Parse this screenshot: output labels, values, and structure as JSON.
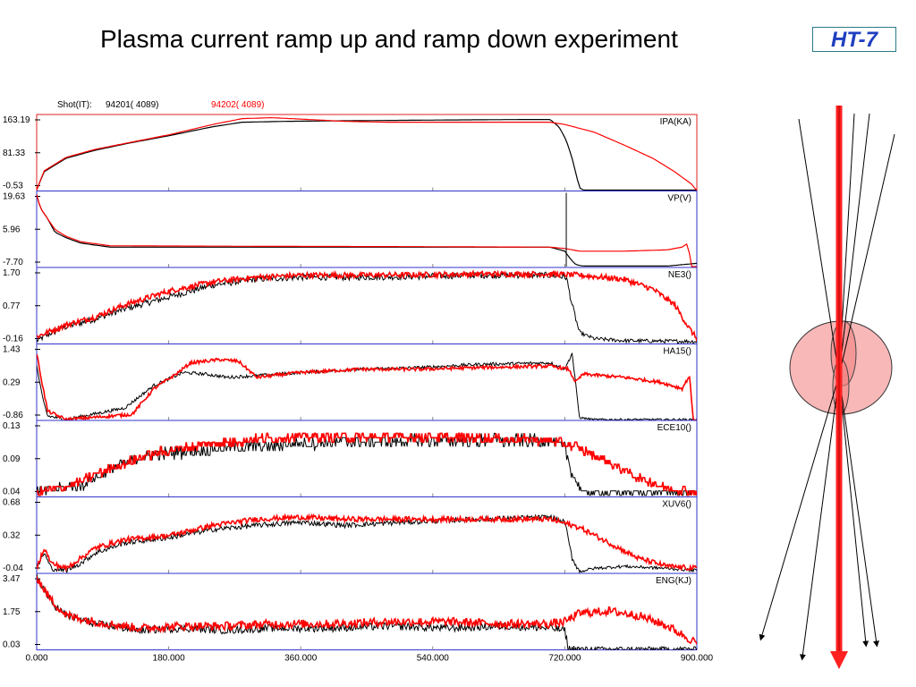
{
  "slide": {
    "title": "Plasma current ramp up and ramp down experiment",
    "badge": "HT-7"
  },
  "colors": {
    "series_a": "#000000",
    "series_b": "#ff0000",
    "panel_frame": "#3333cc",
    "first_panel_frame": "#e02020",
    "schematic_fill": "#f8b8b8",
    "schematic_inner": "#f07878",
    "beam": "#ff2020"
  },
  "chart_data": {
    "type": "line",
    "header_label": "Shot(IT):",
    "series": [
      {
        "name": "94201( 4089)",
        "color": "#000000"
      },
      {
        "name": "94202( 4089)",
        "color": "#ff0000"
      }
    ],
    "xaxis": {
      "ticks": [
        "0.000",
        "180.000",
        "360.000",
        "540.000",
        "720.000",
        "900.000"
      ],
      "xlim": [
        0,
        900
      ]
    },
    "panels": [
      {
        "label": "IPA(KA)",
        "ticks": [
          "163.19",
          "81.33",
          "-0.53"
        ],
        "ylim": [
          -0.53,
          163.19
        ],
        "a": [
          [
            0,
            -0.5
          ],
          [
            10,
            40
          ],
          [
            40,
            70
          ],
          [
            80,
            88
          ],
          [
            130,
            105
          ],
          [
            180,
            120
          ],
          [
            240,
            140
          ],
          [
            280,
            150
          ],
          [
            340,
            152
          ],
          [
            400,
            153
          ],
          [
            480,
            154
          ],
          [
            560,
            155
          ],
          [
            660,
            156
          ],
          [
            700,
            156
          ],
          [
            712,
            140
          ],
          [
            722,
            110
          ],
          [
            730,
            70
          ],
          [
            736,
            30
          ],
          [
            740,
            5
          ],
          [
            745,
            -0.5
          ],
          [
            900,
            -0.5
          ]
        ],
        "b": [
          [
            0,
            -0.5
          ],
          [
            10,
            42
          ],
          [
            40,
            72
          ],
          [
            80,
            90
          ],
          [
            130,
            106
          ],
          [
            180,
            122
          ],
          [
            240,
            145
          ],
          [
            280,
            158
          ],
          [
            320,
            160
          ],
          [
            360,
            157
          ],
          [
            420,
            152
          ],
          [
            480,
            150
          ],
          [
            560,
            150
          ],
          [
            650,
            150
          ],
          [
            700,
            150
          ],
          [
            720,
            145
          ],
          [
            760,
            128
          ],
          [
            800,
            100
          ],
          [
            840,
            70
          ],
          [
            870,
            40
          ],
          [
            895,
            10
          ],
          [
            898,
            -0.5
          ],
          [
            900,
            -0.5
          ]
        ]
      },
      {
        "label": "VP(V)",
        "ticks": [
          "19.63",
          "5.96",
          "-7.70"
        ],
        "ylim": [
          -7.7,
          19.63
        ],
        "a": [
          [
            0,
            19
          ],
          [
            5,
            14
          ],
          [
            15,
            10
          ],
          [
            25,
            5
          ],
          [
            40,
            3
          ],
          [
            60,
            1
          ],
          [
            100,
            -0.5
          ],
          [
            300,
            -0.5
          ],
          [
            500,
            -0.5
          ],
          [
            700,
            -0.5
          ],
          [
            720,
            -2
          ],
          [
            728,
            -5
          ],
          [
            735,
            -7
          ],
          [
            745,
            -7.5
          ],
          [
            860,
            -7.5
          ],
          [
            900,
            -6.5
          ]
        ],
        "b": [
          [
            0,
            19
          ],
          [
            5,
            14
          ],
          [
            15,
            10
          ],
          [
            25,
            6
          ],
          [
            40,
            3.5
          ],
          [
            60,
            1.5
          ],
          [
            100,
            0
          ],
          [
            300,
            -0.2
          ],
          [
            500,
            -0.3
          ],
          [
            700,
            -0.5
          ],
          [
            720,
            -1
          ],
          [
            740,
            -2
          ],
          [
            800,
            -2
          ],
          [
            860,
            -1.5
          ],
          [
            880,
            -0.5
          ],
          [
            888,
            1
          ],
          [
            892,
            -7.7
          ],
          [
            900,
            -7.7
          ]
        ],
        "spikes": [
          {
            "x": 722,
            "y_from": -7.7,
            "y_to": 19.63,
            "color": "#000000"
          }
        ]
      },
      {
        "label": "NE3()",
        "ticks": [
          "1.70",
          "0.77",
          "-0.16"
        ],
        "ylim": [
          -0.16,
          1.7
        ],
        "a": [
          [
            0,
            -0.1
          ],
          [
            20,
            0.1
          ],
          [
            40,
            0.25
          ],
          [
            80,
            0.45
          ],
          [
            120,
            0.7
          ],
          [
            180,
            1.0
          ],
          [
            240,
            1.3
          ],
          [
            300,
            1.45
          ],
          [
            360,
            1.5
          ],
          [
            440,
            1.5
          ],
          [
            520,
            1.52
          ],
          [
            600,
            1.55
          ],
          [
            700,
            1.55
          ],
          [
            722,
            1.5
          ],
          [
            730,
            0.8
          ],
          [
            740,
            0.1
          ],
          [
            760,
            -0.05
          ],
          [
            800,
            -0.1
          ],
          [
            900,
            -0.12
          ]
        ],
        "b": [
          [
            0,
            0.0
          ],
          [
            20,
            0.15
          ],
          [
            40,
            0.3
          ],
          [
            80,
            0.5
          ],
          [
            120,
            0.8
          ],
          [
            180,
            1.15
          ],
          [
            240,
            1.38
          ],
          [
            300,
            1.5
          ],
          [
            360,
            1.55
          ],
          [
            440,
            1.55
          ],
          [
            520,
            1.56
          ],
          [
            600,
            1.58
          ],
          [
            700,
            1.58
          ],
          [
            740,
            1.55
          ],
          [
            800,
            1.45
          ],
          [
            840,
            1.2
          ],
          [
            870,
            0.8
          ],
          [
            890,
            0.2
          ],
          [
            900,
            -0.05
          ]
        ],
        "noise_a": 0.08,
        "noise_b": 0.07
      },
      {
        "label": "HA15()",
        "ticks": [
          "1.43",
          "0.29",
          "-0.86"
        ],
        "ylim": [
          -0.86,
          1.43
        ],
        "a": [
          [
            0,
            0.8
          ],
          [
            8,
            -0.2
          ],
          [
            15,
            -0.75
          ],
          [
            40,
            -0.86
          ],
          [
            120,
            -0.5
          ],
          [
            160,
            0.2
          ],
          [
            200,
            0.6
          ],
          [
            230,
            0.55
          ],
          [
            260,
            0.45
          ],
          [
            300,
            0.5
          ],
          [
            360,
            0.6
          ],
          [
            440,
            0.7
          ],
          [
            520,
            0.75
          ],
          [
            600,
            0.85
          ],
          [
            700,
            0.9
          ],
          [
            720,
            0.7
          ],
          [
            730,
            1.2
          ],
          [
            740,
            -0.8
          ],
          [
            760,
            -0.86
          ],
          [
            900,
            -0.86
          ]
        ],
        "b": [
          [
            0,
            1.2
          ],
          [
            8,
            0.2
          ],
          [
            15,
            -0.6
          ],
          [
            40,
            -0.86
          ],
          [
            130,
            -0.7
          ],
          [
            160,
            0.1
          ],
          [
            190,
            0.55
          ],
          [
            210,
            0.9
          ],
          [
            250,
            1.0
          ],
          [
            275,
            0.95
          ],
          [
            300,
            0.45
          ],
          [
            360,
            0.6
          ],
          [
            440,
            0.7
          ],
          [
            520,
            0.7
          ],
          [
            600,
            0.75
          ],
          [
            700,
            0.8
          ],
          [
            725,
            0.7
          ],
          [
            735,
            0.3
          ],
          [
            745,
            0.55
          ],
          [
            800,
            0.45
          ],
          [
            850,
            0.3
          ],
          [
            880,
            0.1
          ],
          [
            890,
            0.5
          ],
          [
            895,
            -0.86
          ],
          [
            900,
            -0.86
          ]
        ],
        "noise_a": 0.05,
        "noise_b": 0.05
      },
      {
        "label": "ECE10()",
        "ticks": [
          "0.13",
          "0.09",
          "0.04"
        ],
        "ylim": [
          0.035,
          0.135
        ],
        "a": [
          [
            0,
            0.04
          ],
          [
            30,
            0.045
          ],
          [
            60,
            0.05
          ],
          [
            90,
            0.065
          ],
          [
            120,
            0.08
          ],
          [
            150,
            0.09
          ],
          [
            200,
            0.095
          ],
          [
            260,
            0.1
          ],
          [
            340,
            0.105
          ],
          [
            420,
            0.108
          ],
          [
            520,
            0.11
          ],
          [
            620,
            0.11
          ],
          [
            700,
            0.11
          ],
          [
            720,
            0.1
          ],
          [
            732,
            0.06
          ],
          [
            745,
            0.04
          ],
          [
            800,
            0.04
          ],
          [
            900,
            0.04
          ]
        ],
        "b": [
          [
            0,
            0.04
          ],
          [
            30,
            0.045
          ],
          [
            60,
            0.055
          ],
          [
            90,
            0.068
          ],
          [
            120,
            0.08
          ],
          [
            150,
            0.09
          ],
          [
            200,
            0.1
          ],
          [
            260,
            0.108
          ],
          [
            340,
            0.115
          ],
          [
            420,
            0.115
          ],
          [
            520,
            0.115
          ],
          [
            620,
            0.113
          ],
          [
            700,
            0.11
          ],
          [
            740,
            0.1
          ],
          [
            780,
            0.08
          ],
          [
            820,
            0.06
          ],
          [
            860,
            0.045
          ],
          [
            900,
            0.04
          ]
        ],
        "noise_a": 0.008,
        "noise_b": 0.006,
        "step": true
      },
      {
        "label": "XUV6()",
        "ticks": [
          "0.68",
          "0.32",
          "-0.04"
        ],
        "ylim": [
          -0.04,
          0.68
        ],
        "a": [
          [
            0,
            0.0
          ],
          [
            10,
            0.15
          ],
          [
            20,
            0.0
          ],
          [
            40,
            -0.02
          ],
          [
            60,
            0.05
          ],
          [
            80,
            0.15
          ],
          [
            120,
            0.25
          ],
          [
            180,
            0.3
          ],
          [
            240,
            0.38
          ],
          [
            300,
            0.42
          ],
          [
            360,
            0.45
          ],
          [
            420,
            0.42
          ],
          [
            500,
            0.45
          ],
          [
            600,
            0.48
          ],
          [
            700,
            0.5
          ],
          [
            720,
            0.45
          ],
          [
            730,
            0.1
          ],
          [
            740,
            -0.03
          ],
          [
            760,
            0.0
          ],
          [
            800,
            0.02
          ],
          [
            860,
            0.0
          ],
          [
            900,
            -0.02
          ]
        ],
        "b": [
          [
            0,
            0.0
          ],
          [
            10,
            0.2
          ],
          [
            20,
            0.05
          ],
          [
            40,
            0.0
          ],
          [
            60,
            0.1
          ],
          [
            80,
            0.2
          ],
          [
            120,
            0.28
          ],
          [
            180,
            0.32
          ],
          [
            240,
            0.42
          ],
          [
            300,
            0.48
          ],
          [
            360,
            0.5
          ],
          [
            420,
            0.48
          ],
          [
            500,
            0.48
          ],
          [
            600,
            0.48
          ],
          [
            700,
            0.48
          ],
          [
            740,
            0.4
          ],
          [
            780,
            0.25
          ],
          [
            820,
            0.1
          ],
          [
            860,
            0.02
          ],
          [
            900,
            0.0
          ]
        ],
        "noise_a": 0.025,
        "noise_b": 0.025
      },
      {
        "label": "ENG(KJ)",
        "ticks": [
          "3.47",
          "1.75",
          "0.03"
        ],
        "ylim": [
          0.03,
          3.47
        ],
        "a": [
          [
            0,
            3.4
          ],
          [
            10,
            2.8
          ],
          [
            20,
            2.2
          ],
          [
            40,
            1.6
          ],
          [
            80,
            1.2
          ],
          [
            140,
            0.9
          ],
          [
            200,
            1.0
          ],
          [
            260,
            0.9
          ],
          [
            320,
            1.0
          ],
          [
            400,
            1.0
          ],
          [
            480,
            1.1
          ],
          [
            560,
            1.0
          ],
          [
            640,
            1.1
          ],
          [
            700,
            1.0
          ],
          [
            720,
            0.9
          ],
          [
            725,
            0.03
          ],
          [
            900,
            0.03
          ]
        ],
        "b": [
          [
            0,
            3.4
          ],
          [
            10,
            2.8
          ],
          [
            20,
            2.3
          ],
          [
            40,
            1.6
          ],
          [
            80,
            1.3
          ],
          [
            140,
            1.0
          ],
          [
            200,
            1.1
          ],
          [
            260,
            1.1
          ],
          [
            320,
            1.2
          ],
          [
            400,
            1.2
          ],
          [
            480,
            1.3
          ],
          [
            560,
            1.3
          ],
          [
            640,
            1.2
          ],
          [
            700,
            1.2
          ],
          [
            720,
            1.3
          ],
          [
            740,
            1.7
          ],
          [
            780,
            1.8
          ],
          [
            820,
            1.6
          ],
          [
            860,
            1.1
          ],
          [
            890,
            0.5
          ],
          [
            900,
            0.3
          ]
        ],
        "noise_a": 0.18,
        "noise_b": 0.2
      }
    ]
  }
}
